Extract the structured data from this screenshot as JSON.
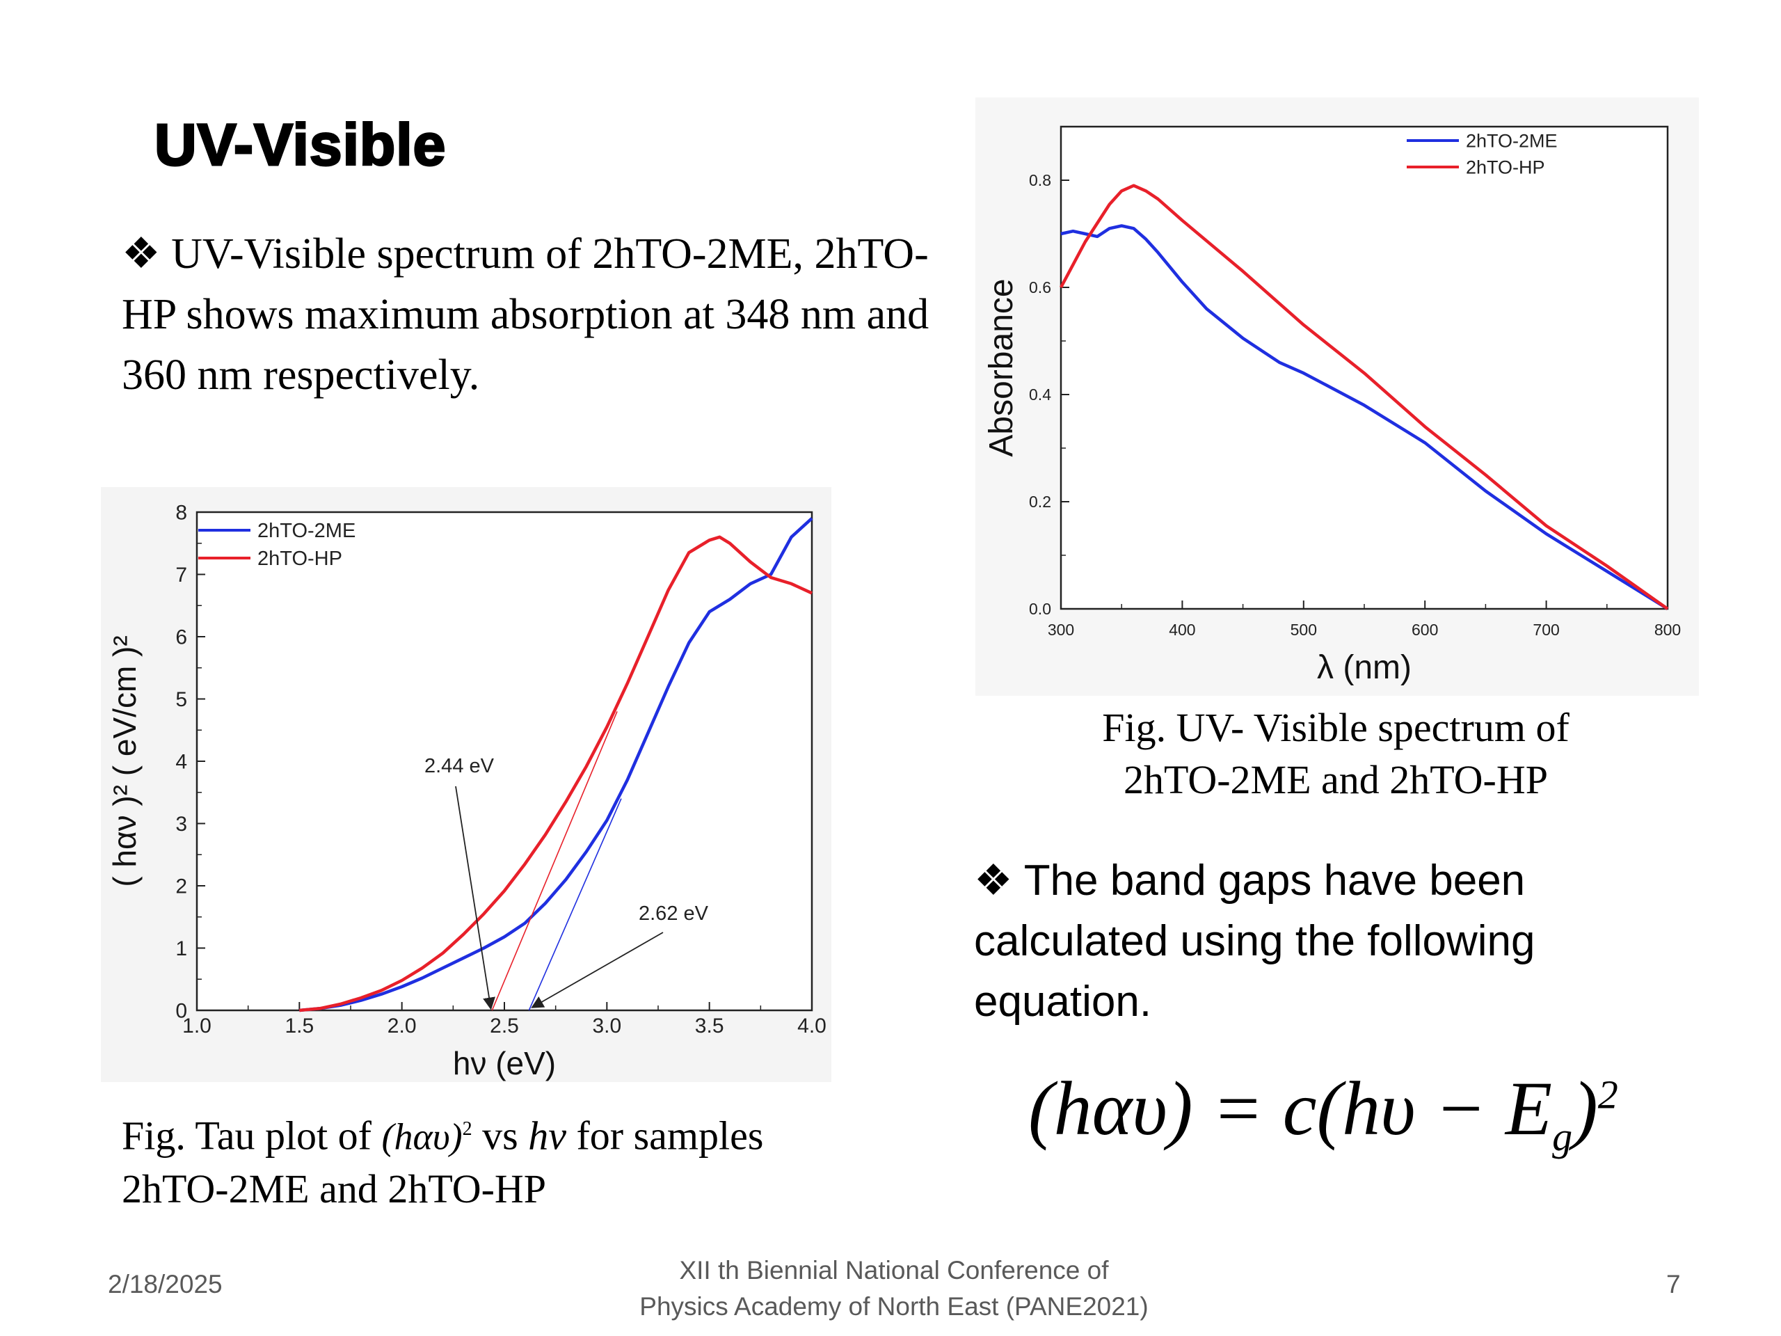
{
  "slide": {
    "title": "UV-Visible",
    "bullet1": "❖ UV-Visible spectrum of 2hTO-2ME, 2hTO-HP shows maximum absorption at 348 nm and 360 nm respectively.",
    "bullet2": "❖ The band gaps have been calculated  using the following equation.",
    "caption_right_line1": "Fig. UV- Visible spectrum of",
    "caption_right_line2": "2hTO-2ME and 2hTO-HP",
    "caption_left_pre": "Fig. Tau plot of",
    "caption_left_expr": "(hαυ)",
    "caption_left_sup": "2",
    "caption_left_vs": "vs",
    "caption_left_hv": "hν",
    "caption_left_post": "for samples",
    "caption_left_line2": "2hTO-2ME and 2hTO-HP",
    "equation_main": "(hαυ) = c(hυ − E",
    "equation_sub": "g",
    "equation_close": ")",
    "equation_sup": "2"
  },
  "footer": {
    "date": "2/18/2025",
    "conference_line1": "XII th  Biennial National Conference of",
    "conference_line2": "Physics Academy of North East (PANE2021)",
    "page": "7"
  },
  "colors": {
    "blue": "#1f2fe0",
    "red": "#e8202a"
  },
  "chart_data": [
    {
      "type": "line",
      "title": "",
      "xlabel": "λ (nm)",
      "ylabel": "Absorbance",
      "xlim": [
        300,
        800
      ],
      "ylim": [
        0.0,
        0.9
      ],
      "xticks": [
        300,
        400,
        500,
        600,
        700,
        800
      ],
      "yticks": [
        0.0,
        0.2,
        0.4,
        0.6,
        0.8
      ],
      "xtick_labels": [
        "300",
        "400",
        "500",
        "600",
        "700",
        "800"
      ],
      "ytick_labels": [
        "0.0",
        "0.2",
        "0.4",
        "0.6",
        "0.8"
      ],
      "legend": "top-right",
      "series": [
        {
          "name": "2hTO-2ME",
          "color": "#1f2fe0",
          "x": [
            300,
            310,
            320,
            330,
            340,
            350,
            360,
            370,
            380,
            400,
            420,
            450,
            480,
            500,
            550,
            600,
            650,
            700,
            750,
            800
          ],
          "y": [
            0.7,
            0.705,
            0.7,
            0.695,
            0.71,
            0.715,
            0.71,
            0.69,
            0.665,
            0.61,
            0.56,
            0.505,
            0.46,
            0.44,
            0.38,
            0.31,
            0.22,
            0.14,
            0.07,
            0.0
          ]
        },
        {
          "name": "2hTO-HP",
          "color": "#e8202a",
          "x": [
            300,
            320,
            340,
            350,
            360,
            370,
            380,
            400,
            450,
            500,
            550,
            600,
            650,
            700,
            750,
            800
          ],
          "y": [
            0.6,
            0.685,
            0.755,
            0.78,
            0.79,
            0.78,
            0.765,
            0.725,
            0.63,
            0.53,
            0.44,
            0.34,
            0.25,
            0.155,
            0.08,
            0.0
          ]
        }
      ]
    },
    {
      "type": "line",
      "title": "",
      "xlabel": "hν (eV)",
      "ylabel": "( hαν )² ( eV/cm )²",
      "xlim": [
        1.0,
        4.0
      ],
      "ylim": [
        0,
        8
      ],
      "xticks": [
        1.0,
        1.5,
        2.0,
        2.5,
        3.0,
        3.5,
        4.0
      ],
      "yticks": [
        0,
        1,
        2,
        3,
        4,
        5,
        6,
        7,
        8
      ],
      "xtick_labels": [
        "1.0",
        "1.5",
        "2.0",
        "2.5",
        "3.0",
        "3.5",
        "4.0"
      ],
      "ytick_labels": [
        "0",
        "1",
        "2",
        "3",
        "4",
        "5",
        "6",
        "7",
        "8"
      ],
      "legend": "top-left",
      "series": [
        {
          "name": "2hTO-2ME",
          "color": "#1f2fe0",
          "x": [
            1.5,
            1.6,
            1.7,
            1.8,
            1.9,
            2.0,
            2.1,
            2.2,
            2.3,
            2.4,
            2.5,
            2.6,
            2.7,
            2.8,
            2.9,
            3.0,
            3.1,
            3.2,
            3.3,
            3.4,
            3.5,
            3.6,
            3.7,
            3.8,
            3.9,
            4.0
          ],
          "y": [
            0,
            0.03,
            0.08,
            0.16,
            0.26,
            0.38,
            0.52,
            0.68,
            0.84,
            1.0,
            1.18,
            1.4,
            1.72,
            2.1,
            2.55,
            3.05,
            3.7,
            4.45,
            5.2,
            5.9,
            6.4,
            6.6,
            6.85,
            7.0,
            7.6,
            7.9
          ]
        },
        {
          "name": "2hTO-HP",
          "color": "#e8202a",
          "x": [
            1.5,
            1.6,
            1.7,
            1.8,
            1.9,
            2.0,
            2.1,
            2.2,
            2.3,
            2.4,
            2.5,
            2.6,
            2.7,
            2.8,
            2.9,
            3.0,
            3.1,
            3.2,
            3.3,
            3.4,
            3.5,
            3.55,
            3.6,
            3.7,
            3.8,
            3.9,
            4.0
          ],
          "y": [
            0,
            0.03,
            0.1,
            0.2,
            0.32,
            0.48,
            0.68,
            0.92,
            1.22,
            1.55,
            1.92,
            2.35,
            2.82,
            3.35,
            3.92,
            4.55,
            5.25,
            6.0,
            6.75,
            7.35,
            7.55,
            7.6,
            7.5,
            7.2,
            6.95,
            6.85,
            6.7
          ]
        }
      ],
      "annotations": [
        {
          "label": "2.44 eV",
          "x": 2.44,
          "y": 0
        },
        {
          "label": "2.62 eV",
          "x": 2.62,
          "y": 0
        }
      ],
      "tangents": [
        {
          "series": "2hTO-HP",
          "x": [
            2.44,
            3.05
          ],
          "y": [
            0,
            4.8
          ]
        },
        {
          "series": "2hTO-2ME",
          "x": [
            2.62,
            3.07
          ],
          "y": [
            0,
            3.4
          ]
        }
      ]
    }
  ]
}
